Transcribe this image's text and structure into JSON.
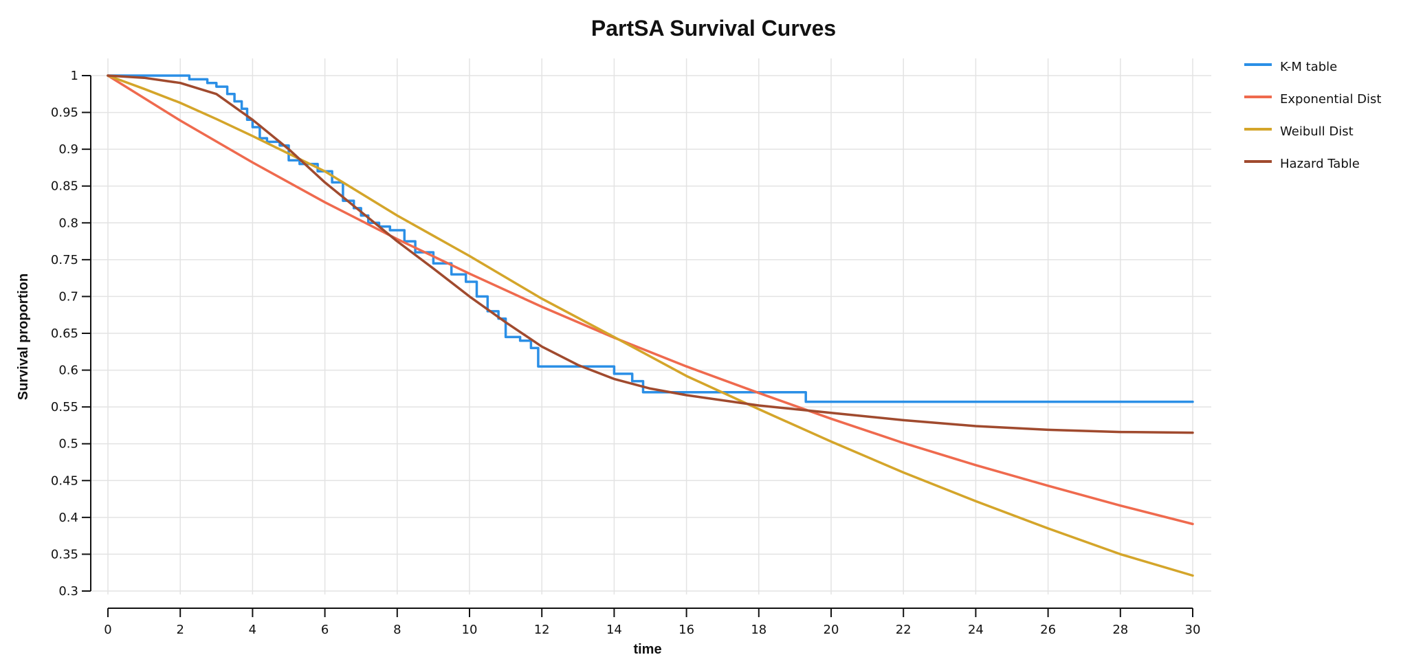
{
  "chart_data": {
    "type": "line",
    "title": "PartSA Survival Curves",
    "xlabel": "time",
    "ylabel": "Survival proportion",
    "xlim": [
      0,
      30
    ],
    "ylim": [
      0.3,
      1
    ],
    "xticks": [
      0,
      2,
      4,
      6,
      8,
      10,
      12,
      14,
      16,
      18,
      20,
      22,
      24,
      26,
      28,
      30
    ],
    "yticks": [
      1,
      0.95,
      0.9,
      0.85,
      0.8,
      0.75,
      0.7,
      0.65,
      0.6,
      0.55,
      0.5,
      0.45,
      0.4,
      0.35,
      0.3
    ],
    "grid": true,
    "legend_position": "top-right",
    "series": [
      {
        "name": "K-M table",
        "color": "#2b8fe6",
        "step": true,
        "x": [
          0,
          2.25,
          2.75,
          3.0,
          3.3,
          3.5,
          3.7,
          3.85,
          4.0,
          4.2,
          4.4,
          4.75,
          5.0,
          5.3,
          5.8,
          6.2,
          6.5,
          6.8,
          7.0,
          7.2,
          7.5,
          7.8,
          8.2,
          8.5,
          9.0,
          9.5,
          9.9,
          10.2,
          10.5,
          10.8,
          11.0,
          11.4,
          11.7,
          11.9,
          14.0,
          14.5,
          14.8,
          19.3,
          30
        ],
        "y": [
          1.0,
          0.995,
          0.99,
          0.985,
          0.975,
          0.965,
          0.955,
          0.94,
          0.93,
          0.915,
          0.91,
          0.905,
          0.885,
          0.88,
          0.87,
          0.855,
          0.83,
          0.82,
          0.81,
          0.8,
          0.795,
          0.79,
          0.775,
          0.76,
          0.745,
          0.73,
          0.72,
          0.7,
          0.68,
          0.67,
          0.645,
          0.64,
          0.63,
          0.605,
          0.595,
          0.585,
          0.57,
          0.557,
          0.557
        ]
      },
      {
        "name": "Exponential Dist",
        "color": "#ef6a4e",
        "step": false,
        "x": [
          0,
          2,
          4,
          6,
          8,
          10,
          12,
          14,
          16,
          18,
          20,
          22,
          24,
          26,
          28,
          30
        ],
        "y": [
          1.0,
          0.939,
          0.882,
          0.828,
          0.778,
          0.731,
          0.686,
          0.644,
          0.605,
          0.569,
          0.534,
          0.501,
          0.471,
          0.443,
          0.416,
          0.391
        ]
      },
      {
        "name": "Weibull Dist",
        "color": "#d4a52a",
        "step": false,
        "x": [
          0,
          1,
          2,
          3,
          4,
          6,
          8,
          10,
          12,
          14,
          16,
          18,
          20,
          22,
          24,
          26,
          28,
          30
        ],
        "y": [
          1.0,
          0.982,
          0.963,
          0.941,
          0.918,
          0.87,
          0.81,
          0.755,
          0.697,
          0.645,
          0.592,
          0.547,
          0.503,
          0.461,
          0.422,
          0.385,
          0.35,
          0.321
        ]
      },
      {
        "name": "Hazard Table",
        "color": "#a04a2e",
        "step": false,
        "x": [
          0,
          1,
          2,
          3,
          4,
          5,
          6,
          7,
          8,
          9,
          10,
          11,
          12,
          13,
          14,
          15,
          16,
          17,
          18,
          19,
          20,
          22,
          24,
          26,
          28,
          30
        ],
        "y": [
          1.0,
          0.997,
          0.99,
          0.975,
          0.94,
          0.9,
          0.855,
          0.815,
          0.775,
          0.738,
          0.7,
          0.665,
          0.632,
          0.607,
          0.588,
          0.575,
          0.566,
          0.559,
          0.552,
          0.547,
          0.542,
          0.532,
          0.524,
          0.519,
          0.516,
          0.515
        ]
      }
    ]
  }
}
